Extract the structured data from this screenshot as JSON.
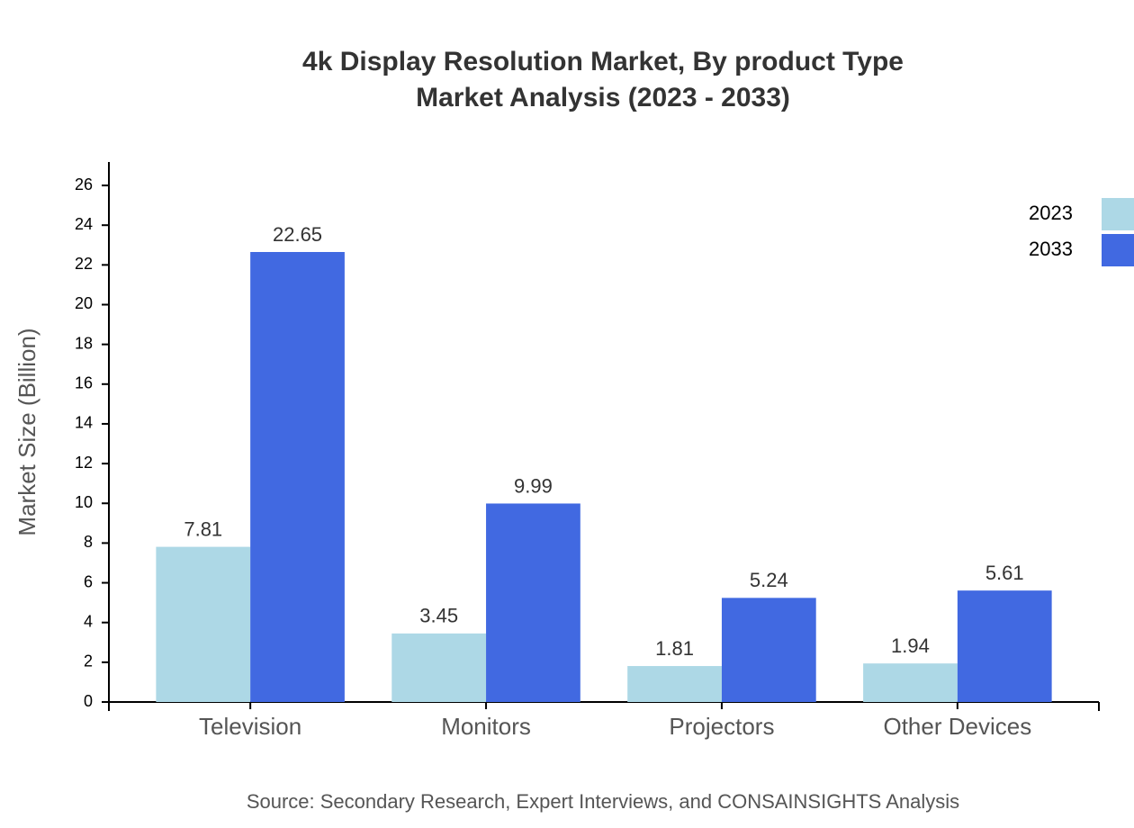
{
  "chart_data": {
    "type": "bar",
    "title": "4k Display Resolution Market, By product Type",
    "subtitle": "Market Analysis (2023 - 2033)",
    "y_label": "Market Size (Billion)",
    "source": "Source: Secondary Research, Expert Interviews, and CONSAINSIGHTS Analysis",
    "categories": [
      "Television",
      "Monitors",
      "Projectors",
      "Other Devices"
    ],
    "series": [
      {
        "name": "2023",
        "color": "#add8e6",
        "values": [
          7.81,
          3.45,
          1.81,
          1.94
        ]
      },
      {
        "name": "2033",
        "color": "#4169e1",
        "values": [
          22.65,
          9.99,
          5.24,
          5.61
        ]
      }
    ],
    "ylim": [
      0,
      27.18
    ],
    "yticks": [
      0,
      2,
      4,
      6,
      8,
      10,
      12,
      14,
      16,
      18,
      20,
      22,
      24,
      26
    ]
  }
}
